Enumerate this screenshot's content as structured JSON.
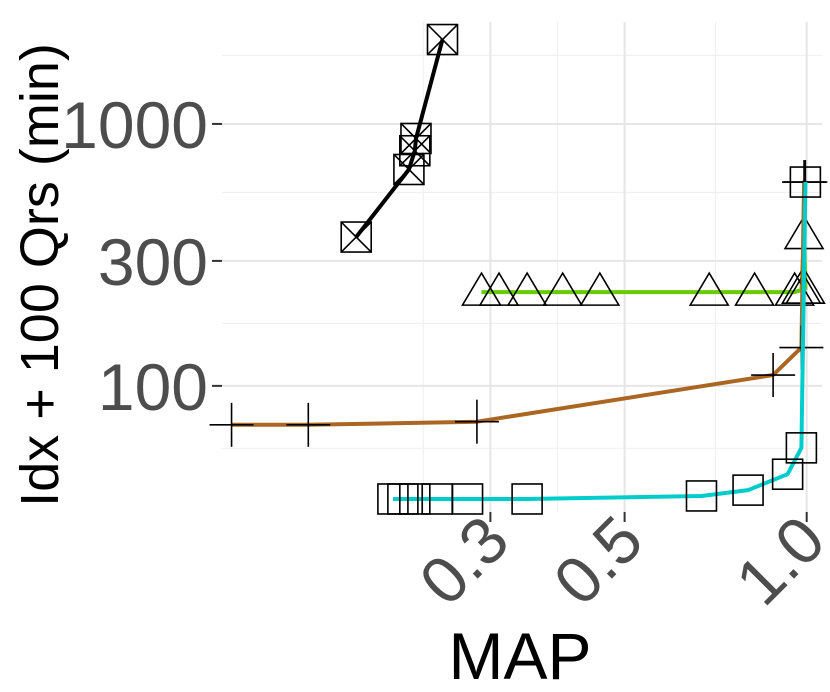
{
  "chart_data": {
    "type": "line",
    "xlabel": "MAP",
    "ylabel": "Idx + 100 Qrs (min)",
    "x_scale": "log10",
    "y_scale": "log10",
    "xlim": [
      0.108,
      1.06
    ],
    "ylim": [
      33,
      2450
    ],
    "x_ticks": [
      0.3,
      0.5,
      1.0
    ],
    "x_tick_labels": [
      "0.3",
      "0.5",
      "1.0"
    ],
    "y_ticks": [
      100,
      300,
      1000
    ],
    "y_tick_labels": [
      "100",
      "300",
      "1000"
    ],
    "grid": true,
    "legend": "none",
    "series": [
      {
        "color": "#000000",
        "marker": "square-x",
        "x": [
          0.18,
          0.22,
          0.225,
          0.226,
          0.25
        ],
        "y": [
          370,
          670,
          790,
          880,
          2100
        ]
      },
      {
        "color": "#66cc00",
        "marker": "triangle",
        "x": [
          0.29,
          0.31,
          0.345,
          0.395,
          0.455,
          0.69,
          0.82,
          0.955,
          0.98,
          0.99,
          0.995
        ],
        "y": [
          228,
          228,
          228,
          228,
          228,
          228,
          228,
          228,
          232,
          375,
          232
        ]
      },
      {
        "color": "#aa6622",
        "marker": "plus",
        "x": [
          0.112,
          0.15,
          0.285,
          0.88,
          0.98,
          0.99,
          0.995
        ],
        "y": [
          71,
          71,
          73,
          110,
          140,
          600,
          600
        ]
      },
      {
        "color": "#00cccc",
        "marker": "square",
        "x": [
          0.207,
          0.215,
          0.225,
          0.245,
          0.275,
          0.345,
          0.67,
          0.8,
          0.93,
          0.98,
          0.995
        ],
        "y": [
          37,
          37,
          37,
          37,
          37,
          37,
          38,
          40,
          46,
          58,
          600
        ]
      }
    ]
  }
}
